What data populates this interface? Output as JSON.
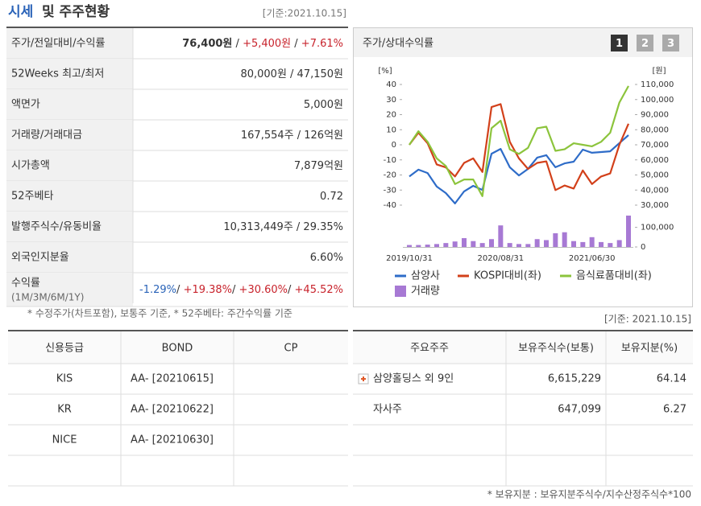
{
  "summary": {
    "title_a": "시세",
    "title_b": "및 주주현황",
    "date": "[기준:2021.10.15]",
    "rows": [
      {
        "label": "주가/전일대비/수익률",
        "value": [
          "76,400원",
          " / ",
          "+5,400원",
          " / ",
          "+7.61%"
        ]
      },
      {
        "label": "52Weeks 최고/최저",
        "value": [
          "80,000원 / 47,150원"
        ]
      },
      {
        "label": "액면가",
        "value": [
          "5,000원"
        ]
      },
      {
        "label": "거래량/거래대금",
        "value": [
          "167,554주 / 126억원"
        ]
      },
      {
        "label": "시가총액",
        "value": [
          "7,879억원"
        ]
      },
      {
        "label": "52주베타",
        "value": [
          "0.72"
        ]
      },
      {
        "label": "발행주식수/유동비율",
        "value": [
          "10,313,449주 / 29.35%"
        ]
      },
      {
        "label": "외국인지분율",
        "value": [
          "6.60%"
        ]
      },
      {
        "label": "수익률",
        "sub": "(1M/3M/6M/1Y)",
        "value": [
          "-1.29%",
          "/ ",
          "+19.38%",
          "/ ",
          "+30.60%",
          "/ ",
          "+45.52%"
        ]
      }
    ],
    "note": "* 수정주가(차트포함), 보통주 기준, * 52주베타: 주간수익률 기준"
  },
  "chart_panel": {
    "buttons": [
      "1",
      "2",
      "3"
    ]
  },
  "chart_data": {
    "type": "line",
    "title": "주가/상대수익률",
    "ylabel": "[%]",
    "y2label": "[원]",
    "categories": [
      "2019/10/31",
      null,
      null,
      null,
      null,
      null,
      null,
      null,
      null,
      null,
      "2020/08/31",
      null,
      null,
      null,
      null,
      null,
      null,
      null,
      null,
      null,
      "2021/06/30",
      null,
      null,
      null,
      null
    ],
    "ylim": [
      -40,
      40
    ],
    "yticks": [
      40,
      30,
      20,
      10,
      0,
      -10,
      -20,
      -30,
      -40
    ],
    "y2lim": [
      30000,
      110000
    ],
    "y2ticks": [
      {
        "value": 110000,
        "label": "110,000"
      },
      {
        "value": 100000,
        "label": "100,000"
      },
      {
        "value": 90000,
        "label": "90,000"
      },
      {
        "value": 80000,
        "label": "80,000"
      },
      {
        "value": 70000,
        "label": "70,000"
      },
      {
        "value": 60000,
        "label": "60,000"
      },
      {
        "value": 50000,
        "label": "50,000"
      },
      {
        "value": 40000,
        "label": "40,000"
      },
      {
        "value": 30000,
        "label": "30,000"
      }
    ],
    "vlim": [
      0,
      160000
    ],
    "vticks": [
      {
        "value": 100000,
        "label": "100,000"
      },
      0
    ],
    "series": [
      {
        "name": "삼양사",
        "color": "#2e6cc8",
        "axis": "y2",
        "values": [
          49000,
          53500,
          51300,
          42300,
          38000,
          31100,
          39100,
          42800,
          40100,
          64100,
          67300,
          55100,
          49700,
          54000,
          61500,
          63100,
          55100,
          57700,
          58800,
          66800,
          64700,
          65200,
          65700,
          71100,
          76400
        ]
      },
      {
        "name": "KOSPI대비(좌)",
        "color": "#d2401a",
        "values": [
          0,
          8,
          1,
          -13,
          -15,
          -21,
          -12,
          -9,
          -18,
          25,
          27,
          2,
          -9,
          -16,
          -12,
          -11,
          -30,
          -27,
          -29,
          -17,
          -26,
          -21,
          -19,
          0,
          14
        ]
      },
      {
        "name": "음식료품대비(좌)",
        "color": "#8cc43c",
        "values": [
          0,
          9,
          2,
          -9,
          -14,
          -26,
          -23,
          -23,
          -34,
          11,
          16,
          -3,
          -6,
          -2,
          11,
          12,
          -4,
          -3,
          1,
          0,
          -1,
          2,
          8,
          28,
          39
        ]
      },
      {
        "name": "거래량",
        "color": "#a779d4",
        "type": "bar",
        "axis": "volume",
        "values": [
          10000,
          10000,
          12000,
          15000,
          20000,
          28000,
          45000,
          30000,
          20000,
          40000,
          110000,
          20000,
          15000,
          15000,
          40000,
          35000,
          70000,
          75000,
          30000,
          25000,
          50000,
          25000,
          20000,
          35000,
          160000
        ]
      }
    ]
  },
  "credit": {
    "header": [
      "신용등급",
      "BOND",
      "CP"
    ],
    "rows": [
      [
        "KIS",
        "AA-  [20210615]"
      ],
      [
        "KR",
        "AA-  [20210622]"
      ],
      [
        "NICE",
        "AA-  [20210630]"
      ]
    ]
  },
  "holders": {
    "date": "[기준: 2021.10.15]",
    "header": [
      "주요주주",
      "보유주식수(보통)",
      "보유지분(%)"
    ],
    "rows": [
      [
        "삼양홀딩스 외 9인",
        "6,615,229",
        "64.14"
      ],
      [
        "자사주",
        "647,099",
        "6.27"
      ]
    ],
    "note": "* 보유지분 : 보유지분주식수/지수산정주식수*100"
  }
}
